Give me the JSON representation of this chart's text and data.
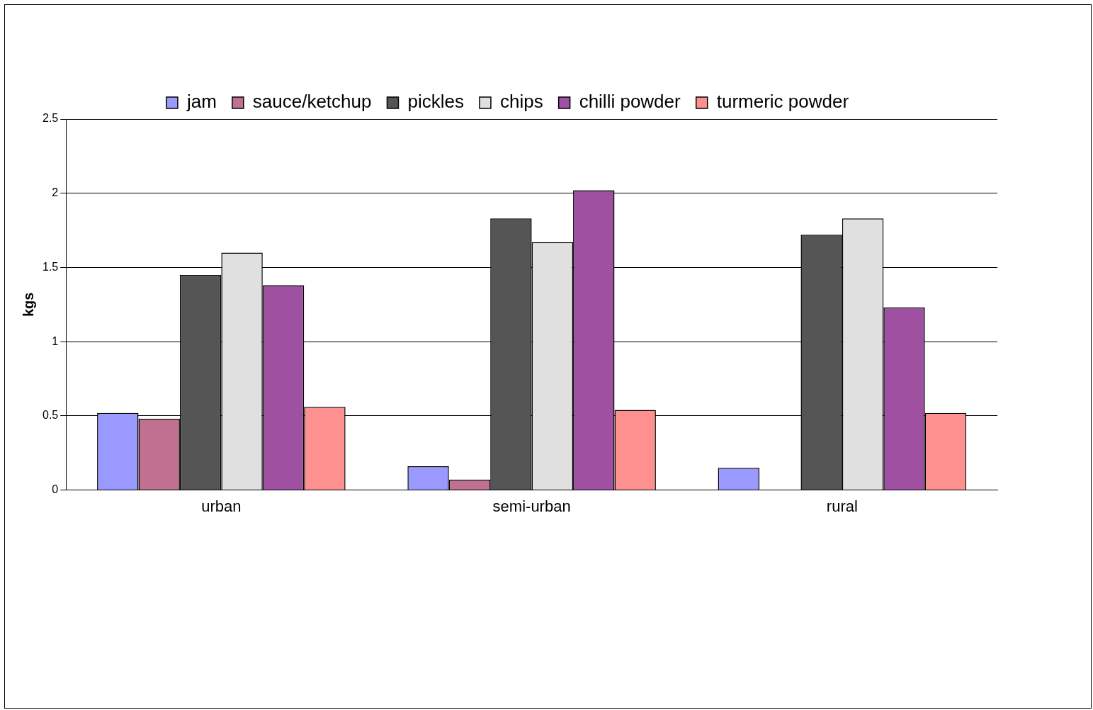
{
  "chart_data": {
    "type": "bar",
    "ylabel": "kgs",
    "categories": [
      "urban",
      "semi-urban",
      "rural"
    ],
    "series": [
      {
        "name": "jam",
        "color": "#9999ff",
        "values": [
          0.52,
          0.16,
          0.15
        ]
      },
      {
        "name": "sauce/ketchup",
        "color": "#c07090",
        "values": [
          0.48,
          0.07,
          null
        ]
      },
      {
        "name": "pickles",
        "color": "#555555",
        "values": [
          1.45,
          1.83,
          1.72
        ]
      },
      {
        "name": "chips",
        "color": "#e0e0e0",
        "values": [
          1.6,
          1.67,
          1.83
        ]
      },
      {
        "name": "chilli powder",
        "color": "#a050a0",
        "values": [
          1.38,
          2.02,
          1.23
        ]
      },
      {
        "name": "turmeric powder",
        "color": "#ff9090",
        "values": [
          0.56,
          0.54,
          0.52
        ]
      }
    ],
    "ylim": [
      0,
      2.5
    ],
    "yticks": [
      0,
      0.5,
      1,
      1.5,
      2,
      2.5
    ],
    "grid": "y",
    "legend": "top"
  }
}
